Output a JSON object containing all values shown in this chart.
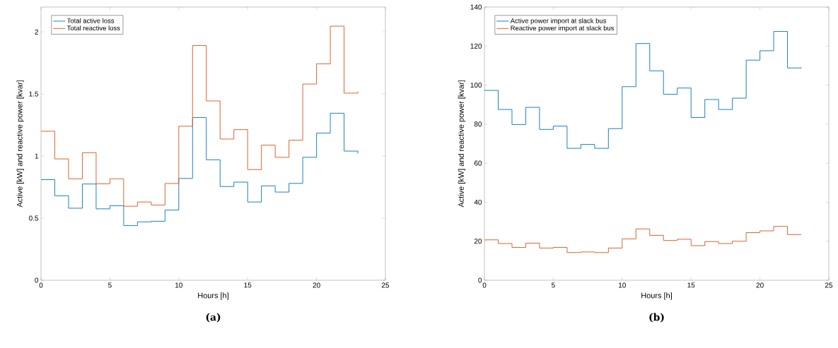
{
  "chart_data": [
    {
      "type": "step",
      "xlabel": "Hours [h]",
      "ylabel": "Active [kW] and reactive power [kvar]",
      "annotations": [
        "(a)"
      ],
      "x": [
        0,
        1,
        2,
        3,
        4,
        5,
        6,
        7,
        8,
        9,
        10,
        11,
        12,
        13,
        14,
        15,
        16,
        17,
        18,
        19,
        20,
        21,
        22,
        23
      ],
      "series": [
        {
          "name": "Total active loss",
          "color": "#0072bd",
          "values": [
            0.81,
            0.68,
            0.58,
            0.775,
            0.575,
            0.6,
            0.44,
            0.47,
            0.475,
            0.565,
            0.82,
            1.31,
            0.97,
            0.755,
            0.79,
            0.63,
            0.76,
            0.71,
            0.78,
            0.99,
            1.185,
            1.345,
            1.04,
            1.02
          ]
        },
        {
          "name": "Total reactive loss",
          "color": "#d95319",
          "values": [
            1.2,
            0.977,
            0.817,
            1.027,
            0.777,
            0.817,
            0.596,
            0.63,
            0.606,
            0.779,
            1.24,
            1.89,
            1.444,
            1.137,
            1.213,
            0.891,
            1.088,
            0.99,
            1.128,
            1.58,
            1.743,
            2.046,
            1.507,
            1.52
          ]
        }
      ],
      "xlim": [
        0,
        25
      ],
      "xticks": [
        0,
        5,
        10,
        15,
        20,
        25
      ],
      "ylim": [
        0,
        2.2
      ],
      "yticks": [
        0,
        0.5,
        1,
        1.5,
        2
      ],
      "legend": "top left",
      "grid": false
    },
    {
      "type": "step",
      "xlabel": "Hours [h]",
      "ylabel": "Active [kW] and reactive power [kvar]",
      "annotations": [
        "(b)"
      ],
      "x": [
        0,
        1,
        2,
        3,
        4,
        5,
        6,
        7,
        8,
        9,
        10,
        11,
        12,
        13,
        14,
        15,
        16,
        17,
        18,
        19,
        20,
        21,
        22,
        23
      ],
      "series": [
        {
          "name": "Active power import at slack bus",
          "color": "#0072bd",
          "values": [
            97.3,
            87.5,
            79.8,
            88.6,
            77.3,
            79.0,
            67.6,
            69.6,
            67.6,
            77.7,
            99.2,
            121.3,
            107.3,
            95.3,
            98.5,
            83.4,
            92.6,
            87.5,
            93.3,
            112.8,
            117.6,
            127.5,
            108.8,
            109.1
          ]
        },
        {
          "name": "Reactive power import at slack bus",
          "color": "#d95319",
          "values": [
            20.7,
            18.8,
            16.8,
            19.0,
            16.5,
            16.8,
            14.2,
            14.5,
            14.2,
            16.5,
            21.2,
            26.3,
            23.0,
            20.4,
            21.0,
            17.7,
            19.8,
            18.8,
            20.0,
            24.4,
            25.3,
            27.6,
            23.4,
            23.4
          ]
        }
      ],
      "xlim": [
        0,
        25
      ],
      "xticks": [
        0,
        5,
        10,
        15,
        20,
        25
      ],
      "ylim": [
        0,
        140
      ],
      "yticks": [
        0,
        20,
        40,
        60,
        80,
        100,
        120,
        140
      ],
      "legend": "top left",
      "grid": false
    }
  ]
}
